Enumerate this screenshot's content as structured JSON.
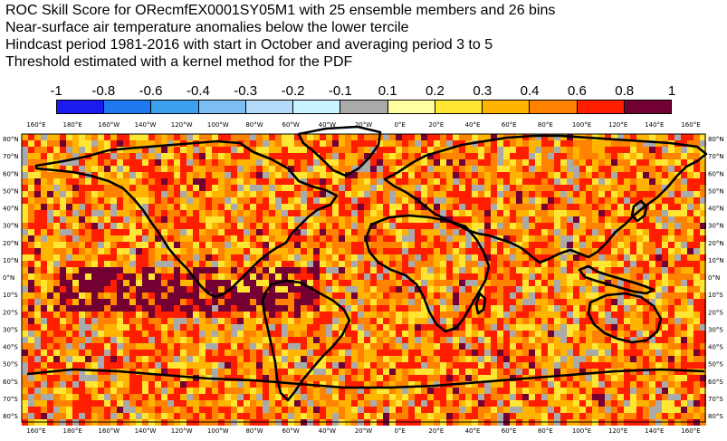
{
  "title": {
    "line1": "ROC Skill Score for ORecmfEX0001SY05M1 with 25 ensemble members and 26 bins",
    "line2": "Near-surface air temperature anomalies below the lower tercile",
    "line3": "Hindcast period 1981-2016 with start in October and averaging period  3 to  5",
    "line4": "Threshold estimated with a kernel method for the PDF"
  },
  "legend": {
    "labels": [
      "-1",
      "-0.8",
      "-0.6",
      "-0.4",
      "-0.3",
      "-0.2",
      "-0.1",
      "0.1",
      "0.2",
      "0.3",
      "0.4",
      "0.6",
      "0.8",
      "1"
    ],
    "colors": [
      "#1b1bf0",
      "#1e78f0",
      "#3ca0f0",
      "#7dbef5",
      "#b4dcfa",
      "#c8f5ff",
      "#aaaaaa",
      "#ffffa0",
      "#ffe632",
      "#ffb400",
      "#ff8200",
      "#ff1e00",
      "#730032"
    ]
  },
  "map": {
    "lon_labels_top": [
      "160°E",
      "180°E",
      "160°W",
      "140°W",
      "120°W",
      "100°W",
      "80°W",
      "60°W",
      "40°W",
      "20°W",
      "0°E",
      "20°E",
      "40°E",
      "60°E",
      "80°E",
      "100°E",
      "120°E",
      "140°E",
      "160°E"
    ],
    "lon_labels_bottom": [
      "160°E",
      "180°E",
      "160°W",
      "140°W",
      "120°W",
      "100°W",
      "80°W",
      "60°W",
      "40°W",
      "20°W",
      "0°E",
      "20°E",
      "40°E",
      "60°E",
      "80°E",
      "100°E",
      "120°E",
      "140°E",
      "160°E"
    ],
    "lat_labels": [
      "80°N",
      "70°N",
      "60°N",
      "50°N",
      "40°N",
      "30°N",
      "20°N",
      "10°N",
      "0°N",
      "10°S",
      "20°S",
      "30°S",
      "40°S",
      "50°S",
      "60°S",
      "70°S",
      "80°S"
    ],
    "coastline_color": "#000000",
    "skill_field_note_colors": {
      "high": "#730032",
      "mid_high": "#ff1e00",
      "mid": "#ff8200",
      "low_pos": "#ffb400",
      "weak": "#ffe632",
      "neutral": "#aaaaaa",
      "neg": "#b4dcfa"
    }
  }
}
